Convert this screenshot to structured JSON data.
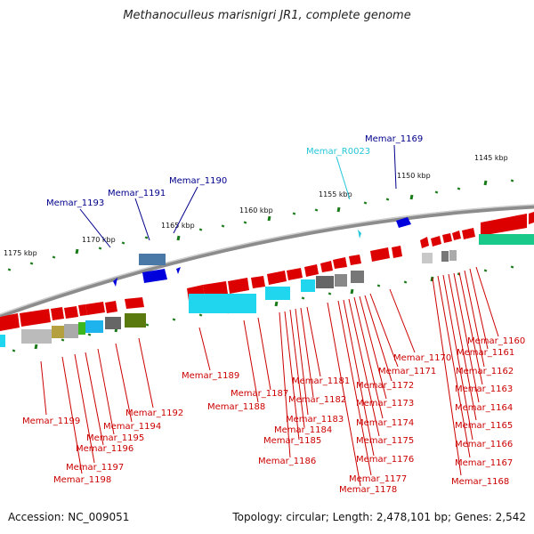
{
  "title": "Methanoculleus marisnigri JR1, complete genome",
  "footer": {
    "accession": "Accession: NC_009051",
    "topology": "Topology: circular; Length: 2,478,101 bp; Genes: 2,542"
  },
  "scale_labels": [
    "1145 kbp",
    "1150 kbp",
    "1155 kbp",
    "1160 kbp",
    "1165 kbp",
    "1170 kbp",
    "1175 kbp"
  ],
  "top_labels": [
    {
      "text": "Memar_1193",
      "color": "#00008b"
    },
    {
      "text": "Memar_1191",
      "color": "#00008b"
    },
    {
      "text": "Memar_1190",
      "color": "#00008b"
    },
    {
      "text": "Memar_R0023",
      "color": "#26c6da"
    },
    {
      "text": "Memar_1169",
      "color": "#00008b"
    }
  ],
  "bottom_labels": [
    "Memar_1160",
    "Memar_1161",
    "Memar_1162",
    "Memar_1163",
    "Memar_1164",
    "Memar_1165",
    "Memar_1166",
    "Memar_1167",
    "Memar_1168",
    "Memar_1170",
    "Memar_1171",
    "Memar_1172",
    "Memar_1173",
    "Memar_1174",
    "Memar_1175",
    "Memar_1176",
    "Memar_1177",
    "Memar_1178",
    "Memar_1181",
    "Memar_1182",
    "Memar_1183",
    "Memar_1184",
    "Memar_1185",
    "Memar_1186",
    "Memar_1187",
    "Memar_1188",
    "Memar_1189",
    "Memar_1192",
    "Memar_1194",
    "Memar_1195",
    "Memar_1196",
    "Memar_1197",
    "Memar_1198",
    "Memar_1199"
  ],
  "colors": {
    "forward_gene": "#dd0000",
    "reverse_gene": "#0000dd",
    "rna_gene": "#26c6da",
    "backbone": "#8c8c8c",
    "tick": "#1a7a1a",
    "label_red": "#cc0000",
    "label_blue": "#00008b"
  }
}
